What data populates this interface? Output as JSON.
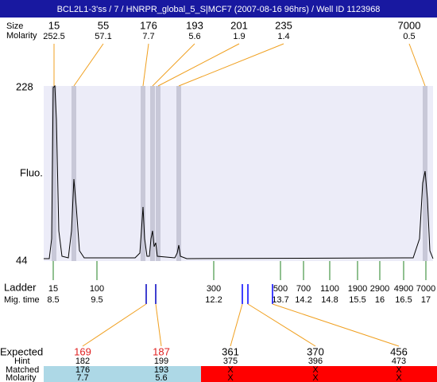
{
  "header": {
    "title": "BCL2L1-3'ss / 7 / HNRPR_global_5_S|MCF7 (2007-08-16 96hrs) / Well ID 1123968"
  },
  "peaks": {
    "labels": [
      "Size",
      "Molarity"
    ],
    "items": [
      {
        "size": 15,
        "molarity": 252.5
      },
      {
        "size": 55,
        "molarity": 57.1
      },
      {
        "size": 176,
        "molarity": 7.7
      },
      {
        "size": 193,
        "molarity": 5.6
      },
      {
        "size": 201,
        "molarity": 1.9
      },
      {
        "size": 235,
        "molarity": 1.4
      },
      {
        "size": 7000,
        "molarity": 0.5
      }
    ]
  },
  "axis": {
    "label": "Fluo.",
    "max": 228,
    "min": 44
  },
  "ladder": {
    "labels": [
      "Ladder",
      "Mig. time"
    ],
    "items": [
      {
        "size": 15,
        "time": 8.5
      },
      {
        "size": 100,
        "time": 9.5
      },
      {
        "size": 300,
        "time": 12.2
      },
      {
        "size": 500,
        "time": 13.7
      },
      {
        "size": 700,
        "time": 14.2
      },
      {
        "size": 1100,
        "time": 14.8
      },
      {
        "size": 1900,
        "time": 15.5
      },
      {
        "size": 2900,
        "time": 16
      },
      {
        "size": 4900,
        "time": 16.5
      },
      {
        "size": 7000,
        "time": 17
      }
    ]
  },
  "expected": {
    "labels": [
      "Expected",
      "Hint",
      "Matched",
      "Molarity"
    ],
    "items": [
      {
        "expected": 169,
        "hint": 182,
        "matched": 176,
        "molarity": 7.7
      },
      {
        "expected": 187,
        "hint": 199,
        "matched": 193,
        "molarity": 5.6
      },
      {
        "expected": 361,
        "hint": 375,
        "matched": "X",
        "molarity": "X"
      },
      {
        "expected": 370,
        "hint": 396,
        "matched": "X",
        "molarity": "X"
      },
      {
        "expected": 456,
        "hint": 473,
        "matched": "X",
        "molarity": "X"
      }
    ]
  }
}
